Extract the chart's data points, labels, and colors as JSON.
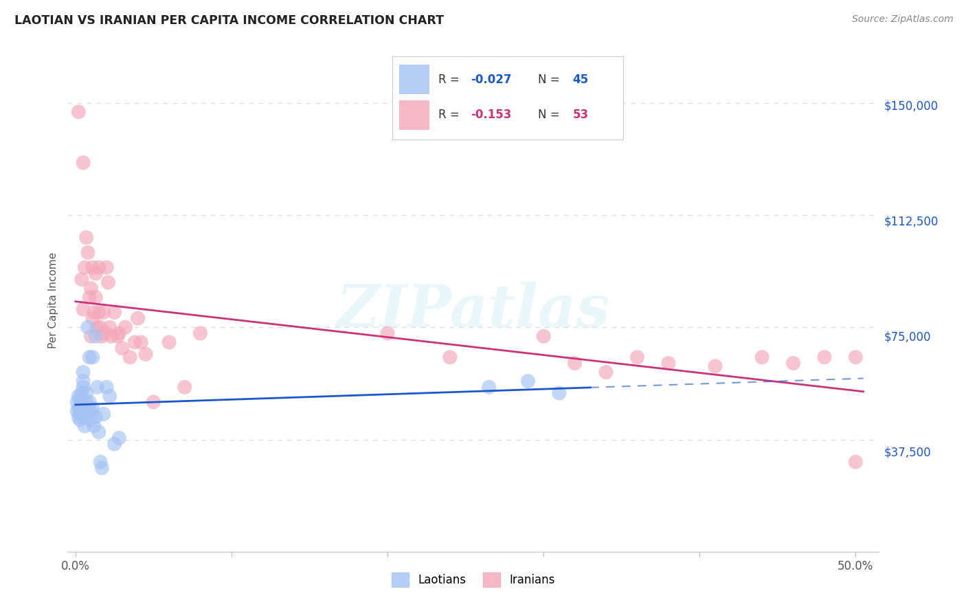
{
  "title": "LAOTIAN VS IRANIAN PER CAPITA INCOME CORRELATION CHART",
  "source": "Source: ZipAtlas.com",
  "ylabel": "Per Capita Income",
  "xlim_min": -0.005,
  "xlim_max": 0.515,
  "ylim_min": 5000,
  "ylim_max": 168000,
  "yticks": [
    37500,
    75000,
    112500,
    150000
  ],
  "ytick_labels": [
    "$37,500",
    "$75,000",
    "$112,500",
    "$150,000"
  ],
  "xticks": [
    0.0,
    0.1,
    0.2,
    0.3,
    0.4,
    0.5
  ],
  "xtick_labels": [
    "0.0%",
    "",
    "",
    "",
    "",
    "50.0%"
  ],
  "background_color": "#ffffff",
  "grid_color": "#e0e0e0",
  "watermark": "ZIPatlas",
  "blue_color": "#a4c2f4",
  "pink_color": "#f4a7b9",
  "blue_line_color": "#1a56cc",
  "pink_line_color": "#cc3377",
  "laotian_x": [
    0.001,
    0.001,
    0.002,
    0.002,
    0.002,
    0.003,
    0.003,
    0.003,
    0.003,
    0.004,
    0.004,
    0.004,
    0.004,
    0.005,
    0.005,
    0.005,
    0.005,
    0.005,
    0.006,
    0.006,
    0.007,
    0.007,
    0.008,
    0.008,
    0.009,
    0.009,
    0.01,
    0.01,
    0.011,
    0.011,
    0.012,
    0.013,
    0.013,
    0.014,
    0.015,
    0.016,
    0.017,
    0.018,
    0.02,
    0.022,
    0.025,
    0.028,
    0.265,
    0.29,
    0.31
  ],
  "laotian_y": [
    50000,
    47000,
    52000,
    48000,
    45000,
    51000,
    48000,
    46000,
    44000,
    53000,
    49000,
    47000,
    50000,
    55000,
    48000,
    45000,
    60000,
    57000,
    42000,
    46000,
    53000,
    50000,
    75000,
    48000,
    65000,
    50000,
    47000,
    44000,
    65000,
    48000,
    42000,
    45000,
    72000,
    55000,
    40000,
    30000,
    28000,
    46000,
    55000,
    52000,
    36000,
    38000,
    55000,
    57000,
    53000
  ],
  "iranian_x": [
    0.002,
    0.004,
    0.005,
    0.005,
    0.006,
    0.007,
    0.008,
    0.009,
    0.01,
    0.01,
    0.011,
    0.011,
    0.012,
    0.013,
    0.013,
    0.014,
    0.015,
    0.015,
    0.016,
    0.017,
    0.018,
    0.019,
    0.02,
    0.021,
    0.022,
    0.023,
    0.025,
    0.027,
    0.028,
    0.03,
    0.032,
    0.035,
    0.038,
    0.04,
    0.042,
    0.045,
    0.05,
    0.06,
    0.07,
    0.08,
    0.2,
    0.24,
    0.3,
    0.32,
    0.34,
    0.36,
    0.38,
    0.41,
    0.44,
    0.46,
    0.48,
    0.5,
    0.5
  ],
  "iranian_y": [
    147000,
    91000,
    130000,
    81000,
    95000,
    105000,
    100000,
    85000,
    88000,
    72000,
    95000,
    78000,
    80000,
    85000,
    93000,
    75000,
    80000,
    95000,
    75000,
    72000,
    80000,
    73000,
    95000,
    90000,
    75000,
    72000,
    80000,
    72000,
    73000,
    68000,
    75000,
    65000,
    70000,
    78000,
    70000,
    66000,
    50000,
    70000,
    55000,
    73000,
    73000,
    65000,
    72000,
    63000,
    60000,
    65000,
    63000,
    62000,
    65000,
    63000,
    65000,
    30000,
    65000
  ]
}
